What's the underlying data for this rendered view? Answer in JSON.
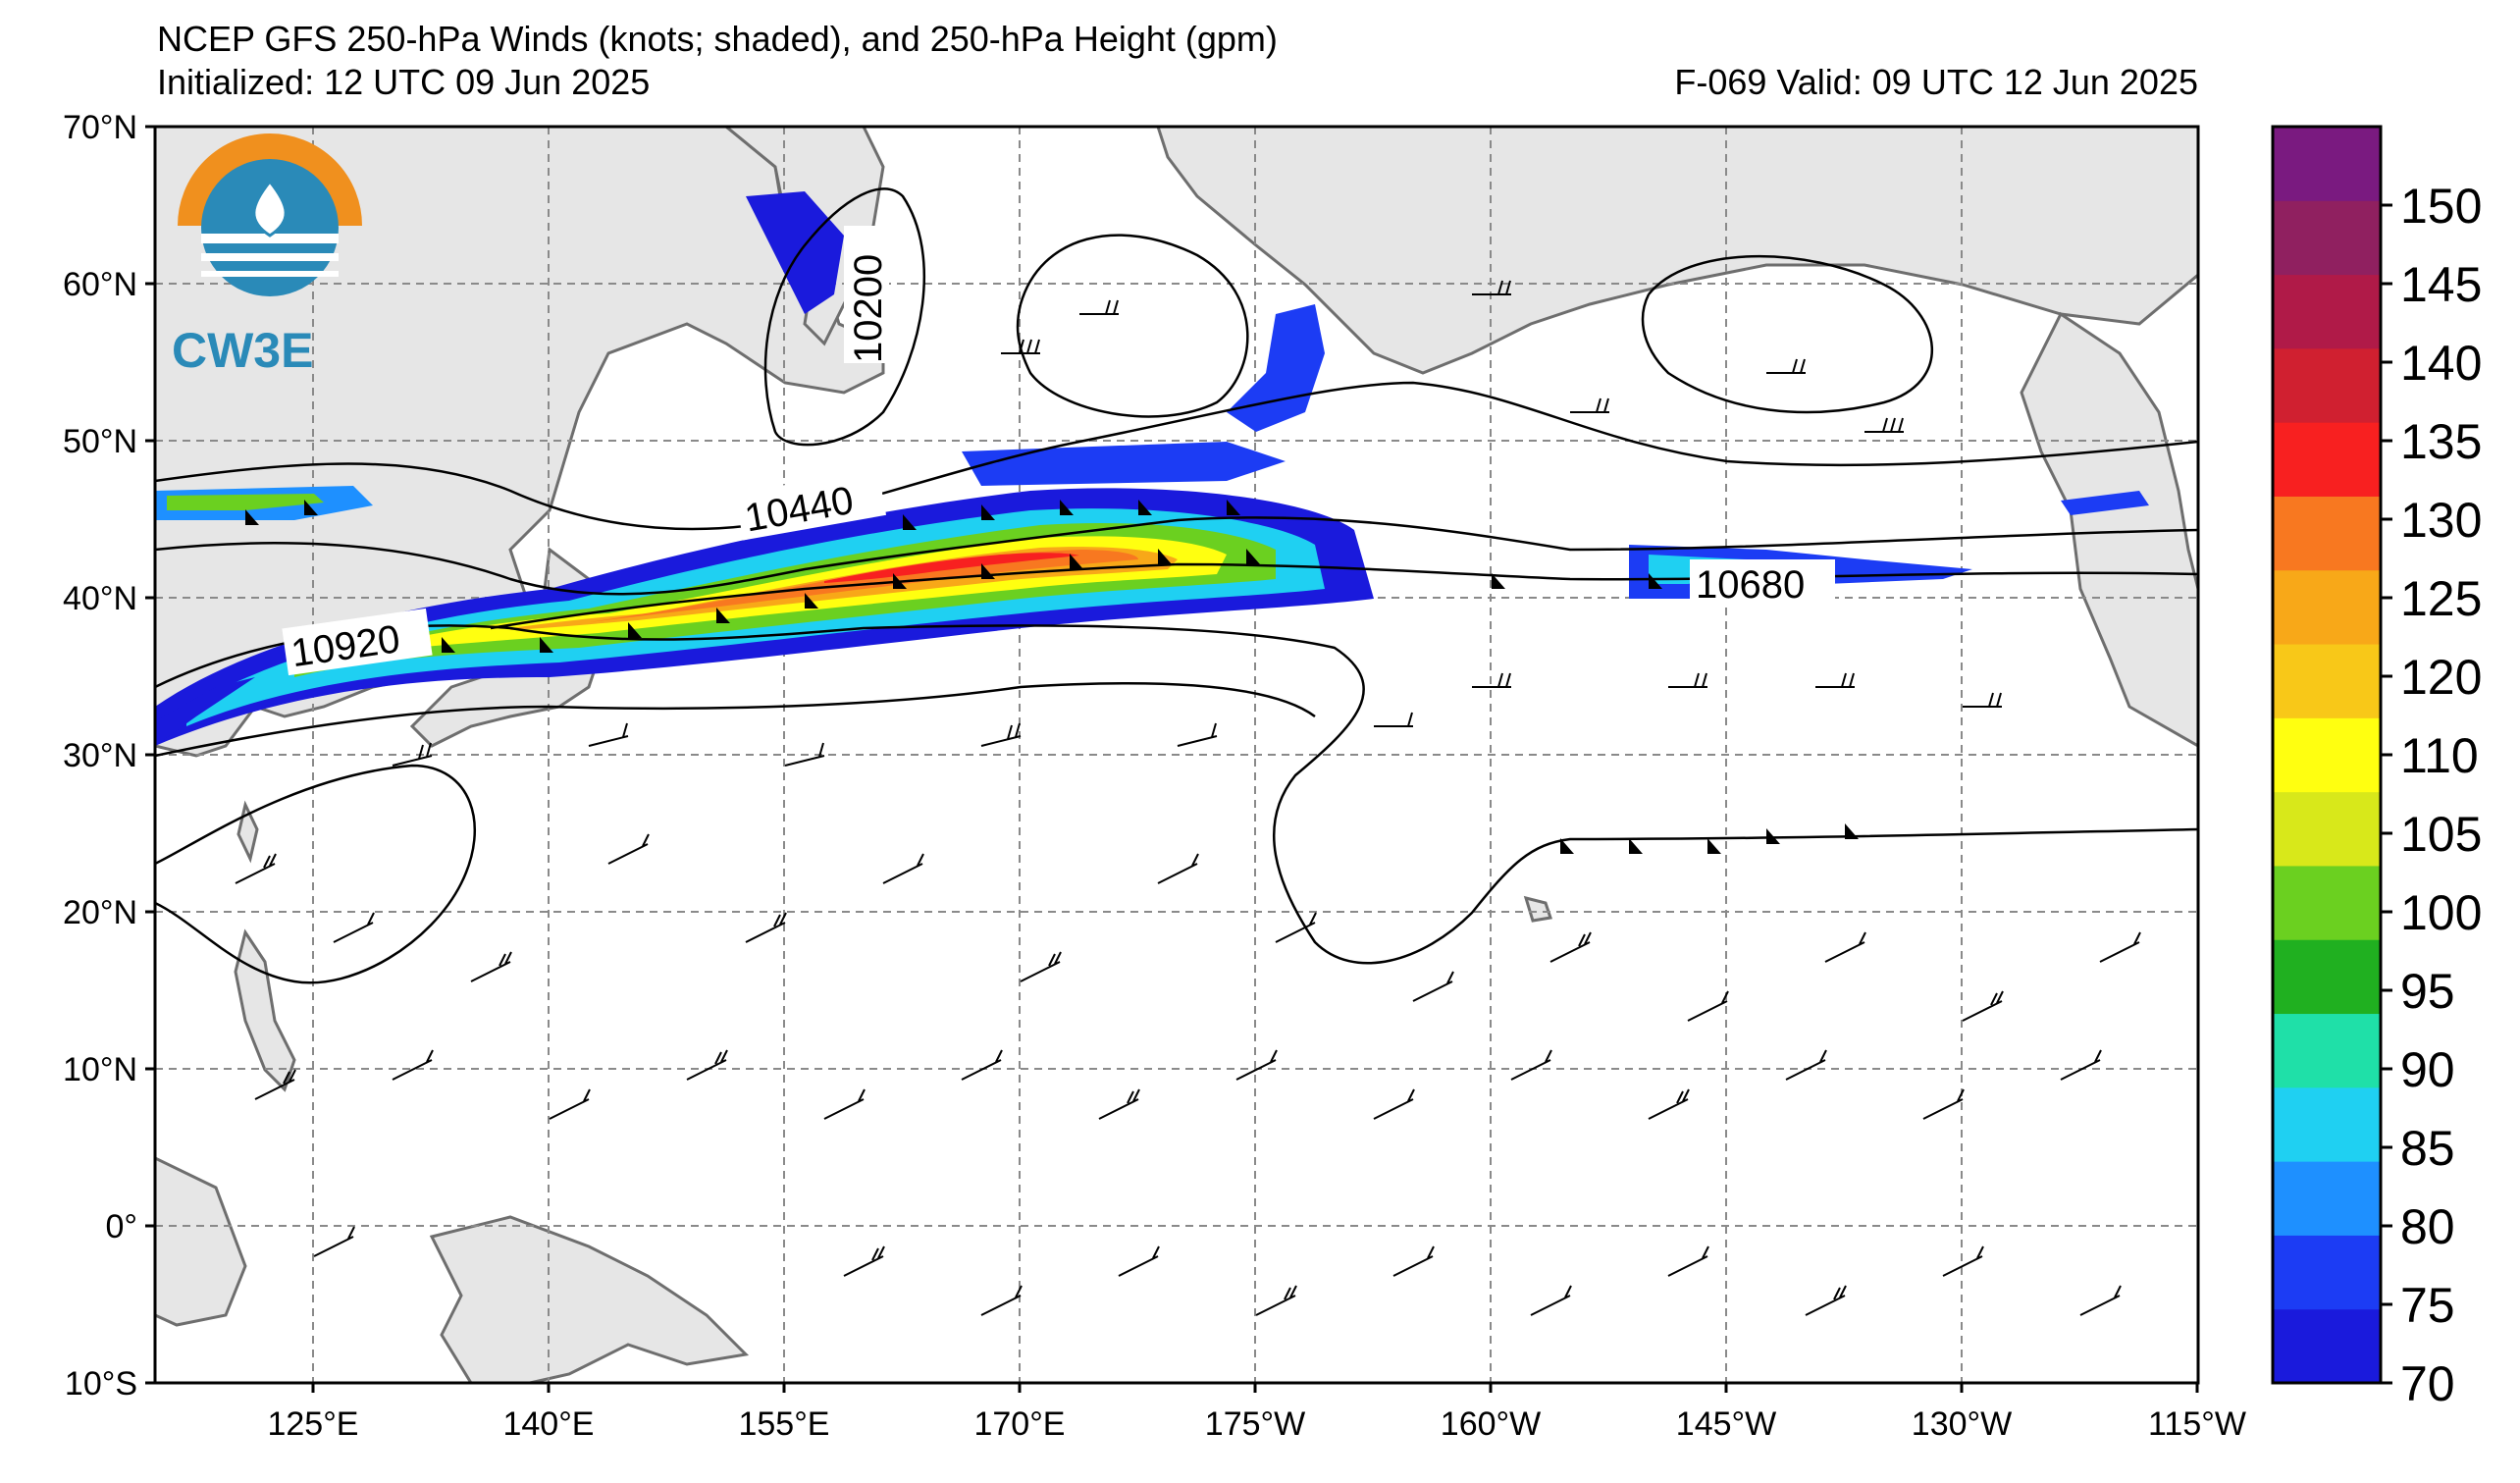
{
  "header": {
    "title": "NCEP GFS 250-hPa Winds (knots; shaded), and 250-hPa Height (gpm)",
    "initialized": "Initialized: 12 UTC 09 Jun 2025",
    "valid": "F-069  Valid: 09 UTC 12 Jun 2025"
  },
  "logo": {
    "text": "CW3E"
  },
  "axes": {
    "lat_labels": [
      "70°N",
      "60°N",
      "50°N",
      "40°N",
      "30°N",
      "20°N",
      "10°N",
      "0°",
      "10°S"
    ],
    "lon_labels": [
      "125°E",
      "140°E",
      "155°E",
      "170°E",
      "175°W",
      "160°W",
      "145°W",
      "130°W",
      "115°W"
    ]
  },
  "contours": {
    "labels": [
      "10200",
      "10440",
      "10680",
      "10920"
    ]
  },
  "colorbar": {
    "ticks": [
      "70",
      "75",
      "80",
      "85",
      "90",
      "95",
      "100",
      "105",
      "110",
      "120",
      "125",
      "130",
      "135",
      "140",
      "145",
      "150"
    ],
    "colors": [
      "#1a1adc",
      "#1c3cf4",
      "#1e90ff",
      "#1fd0f2",
      "#1fe0a8",
      "#20b020",
      "#6bd020",
      "#d8e81a",
      "#ffff10",
      "#f8c818",
      "#f8a818",
      "#f87820",
      "#f82020",
      "#d02030",
      "#b01a48",
      "#902060",
      "#7a1a80"
    ]
  },
  "colors": {
    "land": "#e6e6e6",
    "coast": "#6e6e6e",
    "grid": "#8a8a8a",
    "logo_orange": "#f0901e",
    "logo_blue": "#2a8ab8"
  }
}
